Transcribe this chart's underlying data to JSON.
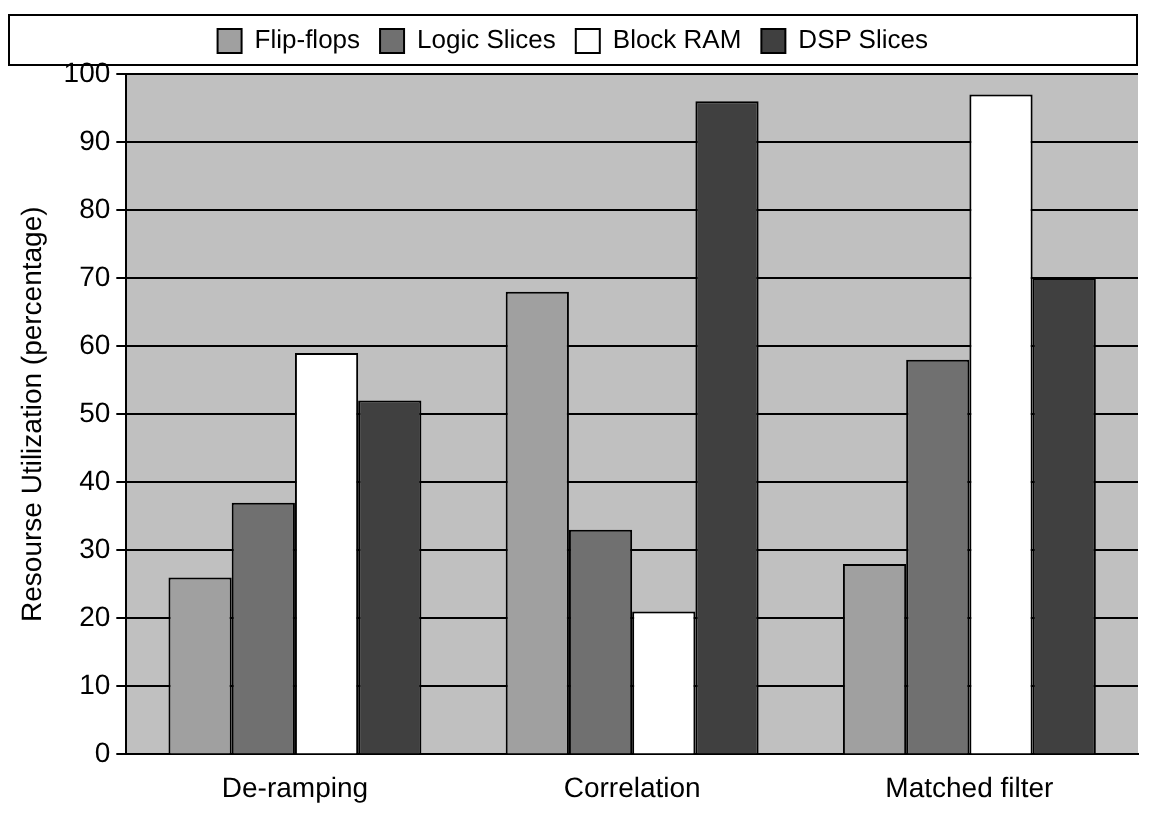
{
  "chart_data": {
    "type": "bar",
    "ylabel": "Resourse Utilization (percentage)",
    "categories": [
      "De-ramping",
      "Correlation",
      "Matched filter"
    ],
    "series": [
      {
        "name": "Flip-flops",
        "color": "#a0a0a0",
        "values": [
          26,
          68,
          28
        ]
      },
      {
        "name": "Logic Slices",
        "color": "#707070",
        "values": [
          37,
          33,
          58
        ]
      },
      {
        "name": "Block RAM",
        "color": "#ffffff",
        "values": [
          59,
          21,
          97
        ]
      },
      {
        "name": "DSP Slices",
        "color": "#404040",
        "values": [
          52,
          96,
          70
        ]
      }
    ],
    "ylim": [
      0,
      100
    ],
    "yticks": [
      0,
      10,
      20,
      30,
      40,
      50,
      60,
      70,
      80,
      90,
      100
    ],
    "grid": "y",
    "legend": "top"
  }
}
